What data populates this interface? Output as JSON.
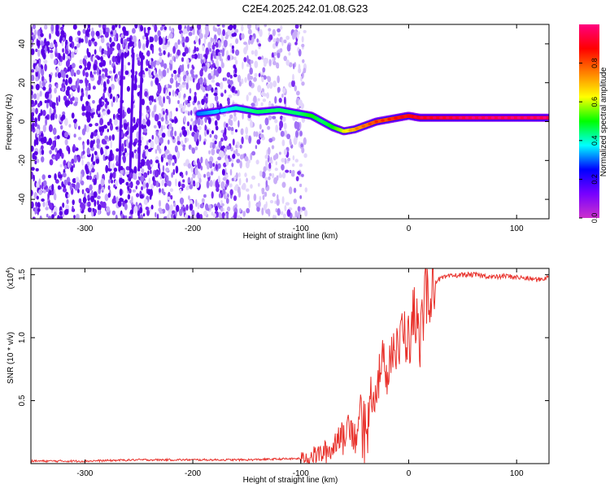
{
  "title": "C2E4.2025.242.01.08.G23",
  "colors": {
    "snr_line": "#e8302a",
    "scatter": [
      "#5a00e6",
      "#7a2bf0",
      "#a070f5",
      "#c9aef8",
      "#e3d6fb"
    ],
    "colorbar": [
      "#cc33cc",
      "#7700ff",
      "#0000ff",
      "#00ffff",
      "#00ff00",
      "#ffff00",
      "#ff8000",
      "#ff0000",
      "#ff0080"
    ]
  },
  "chart_data": [
    {
      "type": "heatmap",
      "name": "spectrogram",
      "xlabel": "Height of straight line (km)",
      "ylabel": "Frequency (Hz)",
      "xlim": [
        -350,
        130
      ],
      "ylim": [
        -50,
        50
      ],
      "xticks": [
        -300,
        -200,
        -100,
        0,
        100
      ],
      "xtick_labels": [
        "-300",
        "-200",
        "-100",
        "0",
        "100"
      ],
      "yticks": [
        -40,
        -20,
        0,
        20,
        40
      ],
      "ytick_labels": [
        "-40",
        "-20",
        "0",
        "20",
        "40"
      ],
      "colorbar": {
        "label": "Normalized spectral amplitude",
        "ticks": [
          0.0,
          0.2,
          0.4,
          0.6,
          0.8
        ],
        "tick_labels": [
          "0.0",
          "0.2",
          "0.4",
          "0.6",
          "0.8"
        ],
        "range": [
          0,
          1
        ]
      },
      "ridge": {
        "x": [
          -195,
          -180,
          -160,
          -140,
          -120,
          -100,
          -90,
          -80,
          -70,
          -60,
          -50,
          -40,
          -30,
          -20,
          -10,
          0,
          10,
          20,
          40,
          60,
          80,
          100,
          130
        ],
        "y": [
          4,
          5,
          7,
          5,
          6,
          4,
          3,
          0,
          -3,
          -5,
          -4,
          -2,
          0,
          1,
          2,
          3,
          2,
          2,
          2,
          2,
          2,
          2,
          2
        ],
        "amplitude": [
          0.3,
          0.35,
          0.4,
          0.45,
          0.45,
          0.45,
          0.5,
          0.45,
          0.5,
          0.6,
          0.7,
          0.75,
          0.8,
          0.8,
          0.85,
          0.85,
          0.9,
          0.9,
          0.92,
          0.95,
          0.95,
          0.95,
          0.95
        ]
      },
      "noise_region_x": [
        -350,
        -95
      ]
    },
    {
      "type": "line",
      "name": "snr",
      "xlabel": "Height of straight line (km)",
      "ylabel": "SNR (10 * v/v)",
      "y_multiplier_label": "(x10",
      "y_multiplier_exp": "4",
      "xlim": [
        -350,
        130
      ],
      "ylim": [
        0,
        1.55
      ],
      "xticks": [
        -300,
        -200,
        -100,
        0,
        100
      ],
      "xtick_labels": [
        "-300",
        "-200",
        "-100",
        "0",
        "100"
      ],
      "yticks": [
        0.5,
        1.0,
        1.5
      ],
      "ytick_labels": [
        "0.5",
        "1.0",
        "1.5"
      ],
      "series": [
        {
          "name": "SNR",
          "x": [
            -350,
            -300,
            -250,
            -200,
            -150,
            -100,
            -90,
            -80,
            -70,
            -65,
            -60,
            -55,
            -50,
            -45,
            -40,
            -35,
            -30,
            -25,
            -20,
            -15,
            -10,
            -5,
            0,
            5,
            10,
            15,
            20,
            25,
            30,
            35,
            40,
            50,
            60,
            70,
            80,
            90,
            100,
            110,
            120,
            130
          ],
          "y": [
            0.02,
            0.02,
            0.03,
            0.03,
            0.03,
            0.04,
            0.06,
            0.08,
            0.12,
            0.25,
            0.18,
            0.35,
            0.2,
            0.4,
            0.3,
            0.55,
            0.6,
            0.8,
            0.75,
            0.95,
            0.85,
            1.1,
            0.95,
            1.2,
            1.0,
            1.3,
            1.4,
            1.45,
            1.47,
            1.48,
            1.49,
            1.5,
            1.5,
            1.49,
            1.48,
            1.49,
            1.48,
            1.47,
            1.46,
            1.48
          ]
        }
      ]
    }
  ]
}
